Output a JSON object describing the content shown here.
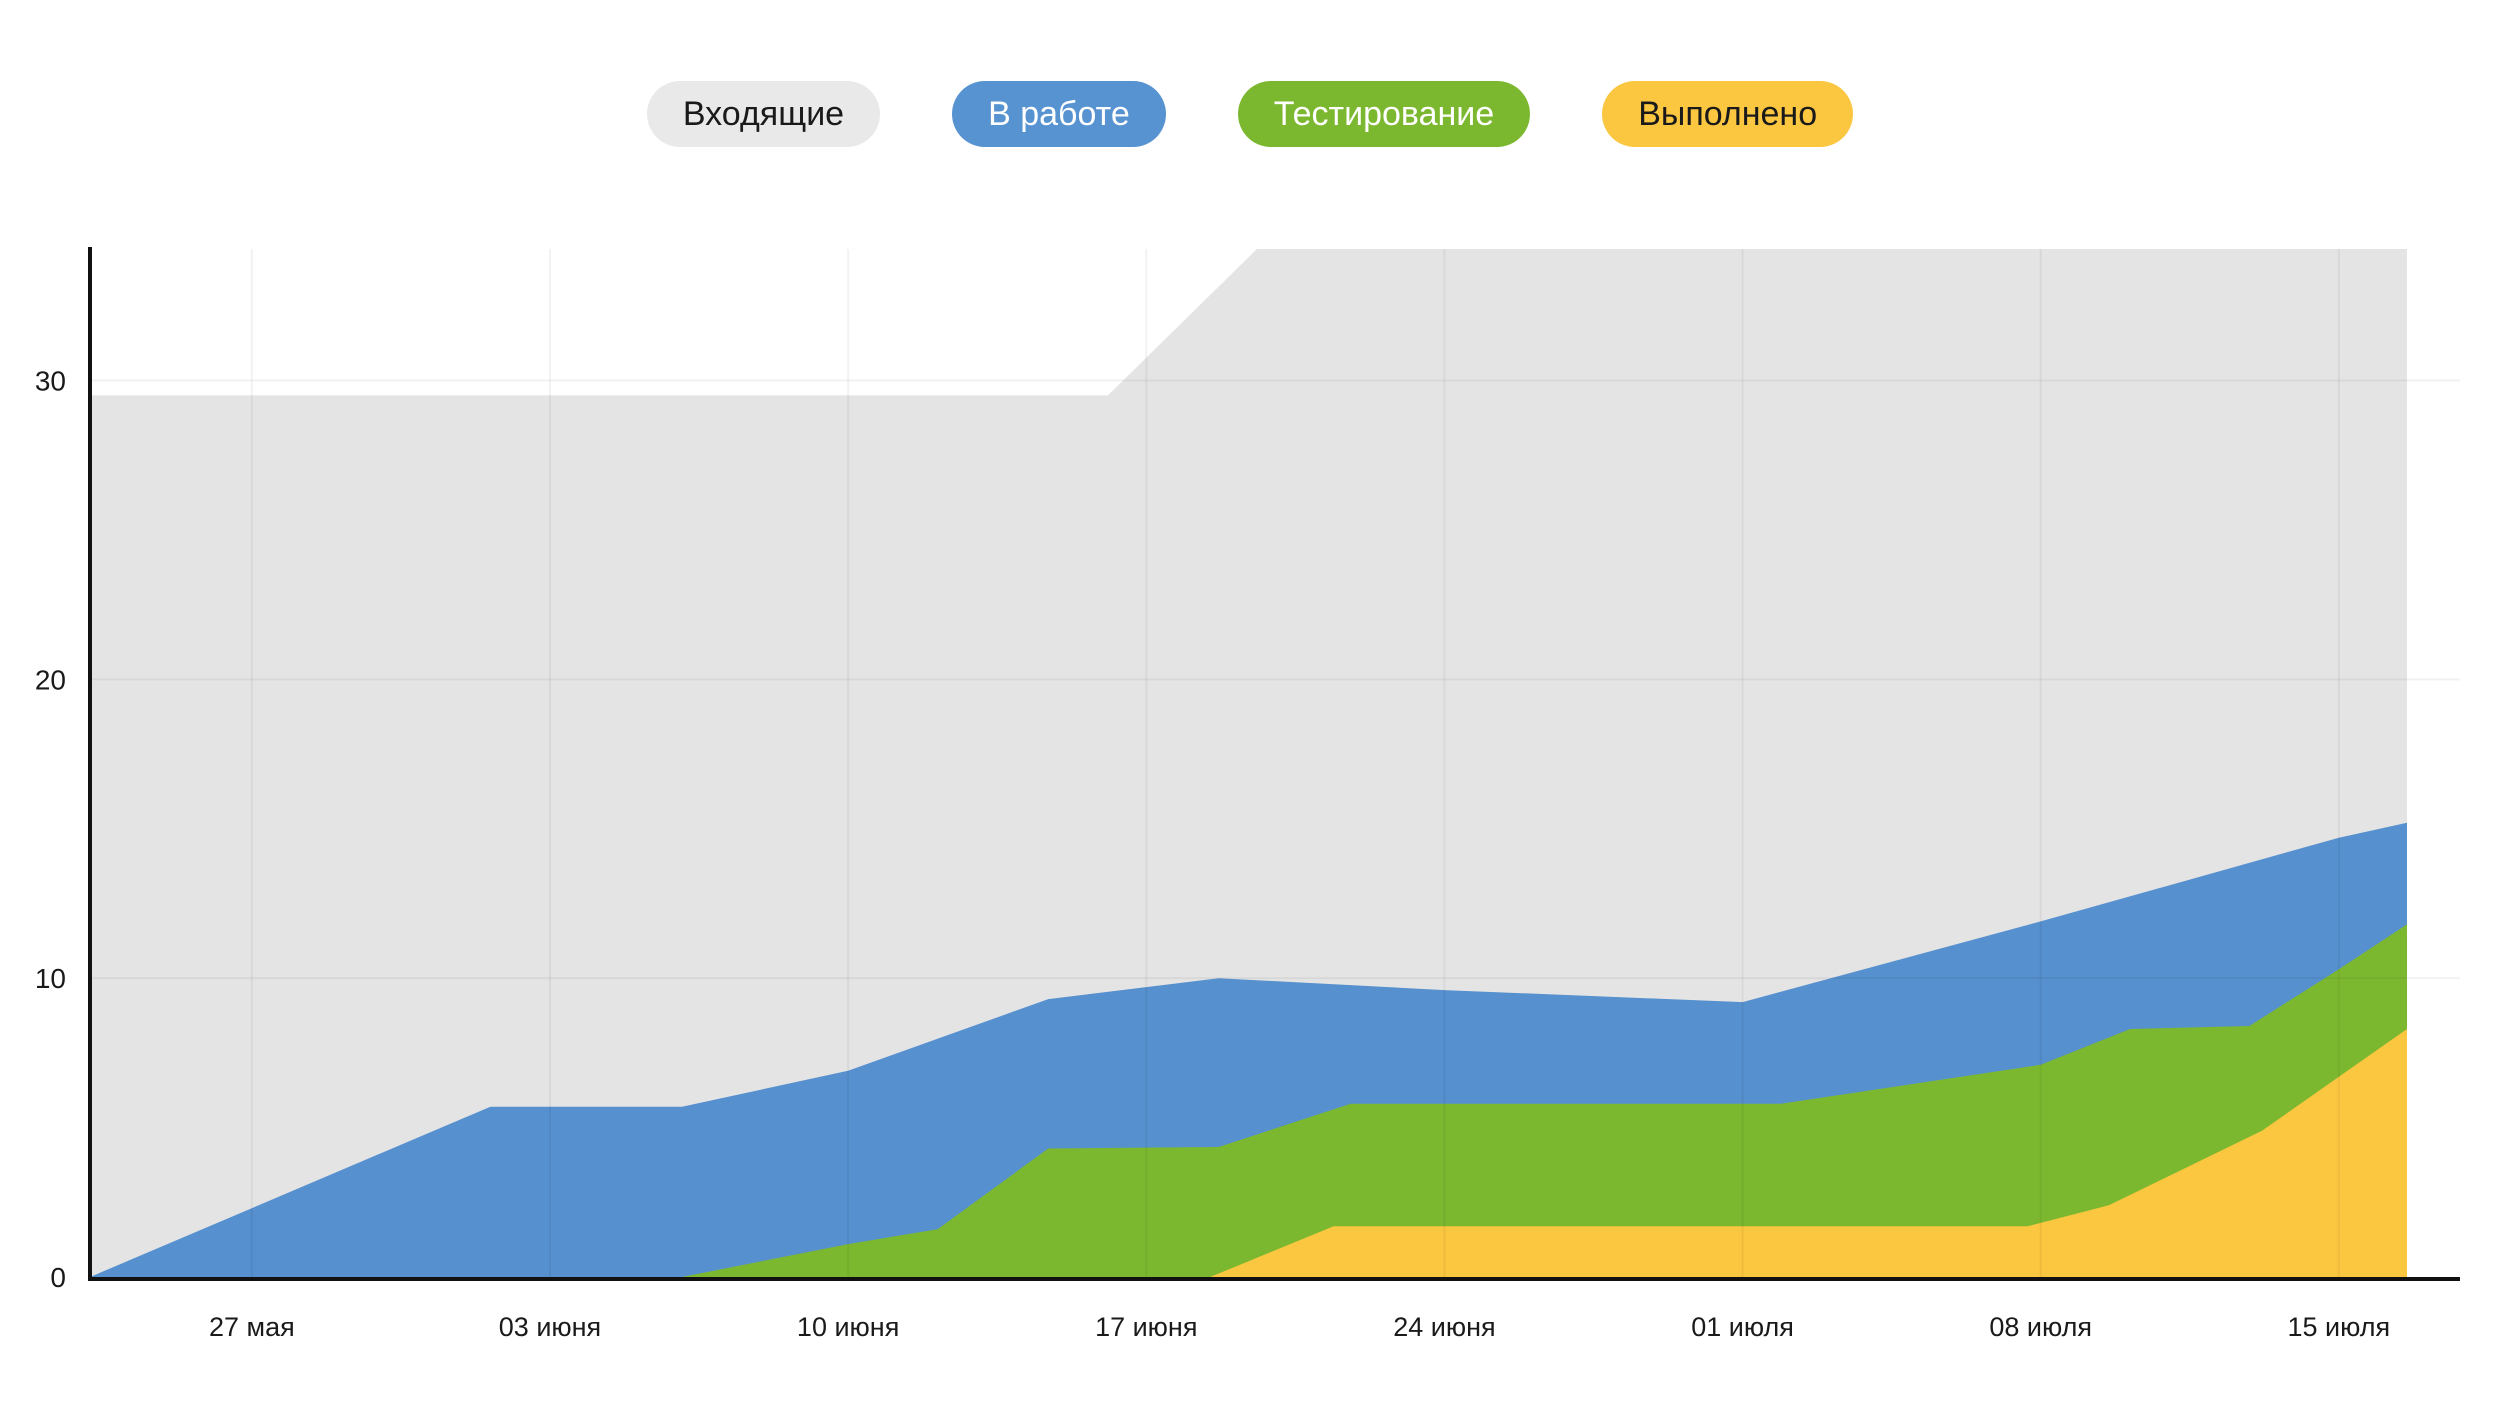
{
  "page": {
    "background": "#ffffff"
  },
  "legend": {
    "position": "top-center",
    "items": [
      {
        "label": "Входящие",
        "bg": "#e9e9e9",
        "text_color": "#1a1a1a"
      },
      {
        "label": "В работе",
        "bg": "#5793d1",
        "text_color": "#ffffff"
      },
      {
        "label": "Тестирование",
        "bg": "#7cb82f",
        "text_color": "#ffffff"
      },
      {
        "label": "Выполнено",
        "bg": "#fbc640",
        "text_color": "#1a1a1a"
      }
    ]
  },
  "chart_data": {
    "type": "area",
    "stacked": true,
    "title": "",
    "xlabel": "",
    "ylabel": "",
    "x_tick_labels": [
      "27 мая",
      "03 июня",
      "10 июня",
      "17 июня",
      "24 июня",
      "01 июля",
      "08 июля",
      "15 июля"
    ],
    "x_tick_days": [
      0,
      7,
      14,
      21,
      28,
      35,
      42,
      49
    ],
    "y_ticks": [
      0,
      10,
      20,
      30
    ],
    "ylim": [
      0,
      34.4
    ],
    "grid": true,
    "legend_position": "top-center",
    "note": "Cumulative flow diagram; grey series (Входящие) reaches and is clipped by the top of the plot after ~20 июня",
    "series": [
      {
        "name": "Выполнено",
        "color": "#fbc640",
        "values_at_ticks": [
          0,
          0,
          0,
          0,
          1.7,
          1.7,
          2.0,
          6.7
        ]
      },
      {
        "name": "Тестирование",
        "color": "#7cb82f",
        "values_at_ticks": [
          0,
          0,
          1.1,
          4.3,
          4.1,
          4.1,
          5.1,
          3.6
        ]
      },
      {
        "name": "В работе",
        "color": "#5690ce",
        "values_at_ticks": [
          2.3,
          5.7,
          5.8,
          5.4,
          3.9,
          3.4,
          4.8,
          4.4
        ]
      },
      {
        "name": "Входящие",
        "color": "#e4e4e4",
        "values_at_ticks": [
          27.2,
          23.8,
          22.6,
          19.8,
          24.9,
          25.6,
          22.5,
          13.0
        ]
      }
    ],
    "totals_visible_at_ticks": [
      29.5,
      29.5,
      29.5,
      29.5,
      34.4,
      34.4,
      34.4,
      34.4
    ],
    "cumulative_boundaries": [
      {
        "series": "Входящие",
        "key": "incoming",
        "points": [
          [
            -3.8,
            29.5
          ],
          [
            20.1,
            29.5
          ],
          [
            23.6,
            34.4
          ],
          [
            50.6,
            34.4
          ]
        ]
      },
      {
        "series": "В работе",
        "key": "in_progress",
        "points": [
          [
            -3.8,
            0
          ],
          [
            5.6,
            5.7
          ],
          [
            10.1,
            5.7
          ],
          [
            14,
            6.9
          ],
          [
            18.7,
            9.3
          ],
          [
            21,
            9.7
          ],
          [
            22.7,
            10.0
          ],
          [
            28,
            9.6
          ],
          [
            35,
            9.2
          ],
          [
            42,
            11.9
          ],
          [
            49,
            14.7
          ],
          [
            50.6,
            15.2
          ]
        ]
      },
      {
        "series": "Тестирование",
        "key": "testing",
        "points": [
          [
            -3.8,
            0
          ],
          [
            10.1,
            0
          ],
          [
            14,
            1.1
          ],
          [
            16.1,
            1.6
          ],
          [
            18.7,
            4.3
          ],
          [
            22.7,
            4.35
          ],
          [
            25.8,
            5.8
          ],
          [
            35.9,
            5.8
          ],
          [
            42,
            7.1
          ],
          [
            44.1,
            8.3
          ],
          [
            46.9,
            8.4
          ],
          [
            49,
            10.3
          ],
          [
            50.6,
            11.8
          ]
        ]
      },
      {
        "series": "Выполнено",
        "key": "done",
        "points": [
          [
            -3.8,
            0
          ],
          [
            22.5,
            0
          ],
          [
            25.4,
            1.7
          ],
          [
            41.7,
            1.7
          ],
          [
            43.6,
            2.4
          ],
          [
            47.2,
            4.9
          ],
          [
            49,
            6.7
          ],
          [
            50.6,
            8.3
          ]
        ]
      }
    ],
    "draw_order_top_first": [
      "incoming",
      "in_progress",
      "testing",
      "done"
    ],
    "axis_color": "#111111",
    "grid_color": "rgba(0,0,0,0.05)",
    "tick_label_color": "#1a1a1a"
  }
}
